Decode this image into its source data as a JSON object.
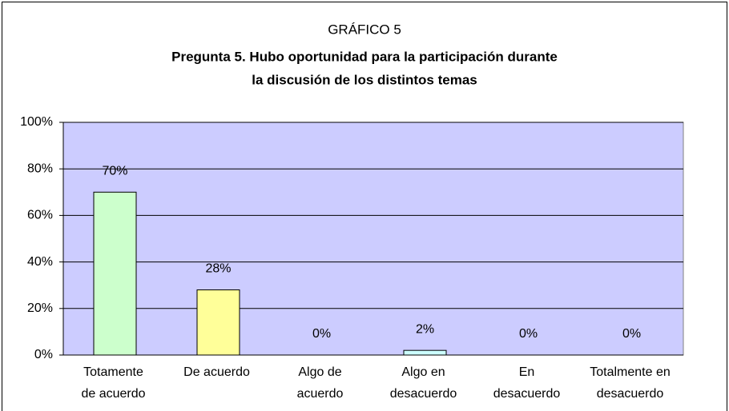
{
  "chart_data": {
    "type": "bar",
    "title": "GRÁFICO 5",
    "subtitle": [
      "Pregunta 5. Hubo oportunidad para la participación durante",
      "la discusión de los distintos temas"
    ],
    "categories": [
      [
        "Totamente",
        "de acuerdo"
      ],
      [
        "De acuerdo"
      ],
      [
        "Algo de",
        "acuerdo"
      ],
      [
        "Algo en",
        "desacuerdo"
      ],
      [
        "En",
        "desacuerdo"
      ],
      [
        "Totalmente en",
        "desacuerdo"
      ]
    ],
    "values": [
      70,
      28,
      0,
      2,
      0,
      0
    ],
    "value_labels": [
      "70%",
      "28%",
      "0%",
      "2%",
      "0%",
      "0%"
    ],
    "colors": [
      "#ccffcc",
      "#ffff99",
      "#ccffff",
      "#ccffff",
      "#ccffff",
      "#ccffff"
    ],
    "plot_background": "#ccccff",
    "ylim": [
      0,
      100
    ],
    "yticks": [
      {
        "value": 0,
        "label": "0%"
      },
      {
        "value": 20,
        "label": "20%"
      },
      {
        "value": 40,
        "label": "40%"
      },
      {
        "value": 60,
        "label": "60%"
      },
      {
        "value": 80,
        "label": "80%"
      },
      {
        "value": 100,
        "label": "100%"
      }
    ],
    "grid": true
  }
}
